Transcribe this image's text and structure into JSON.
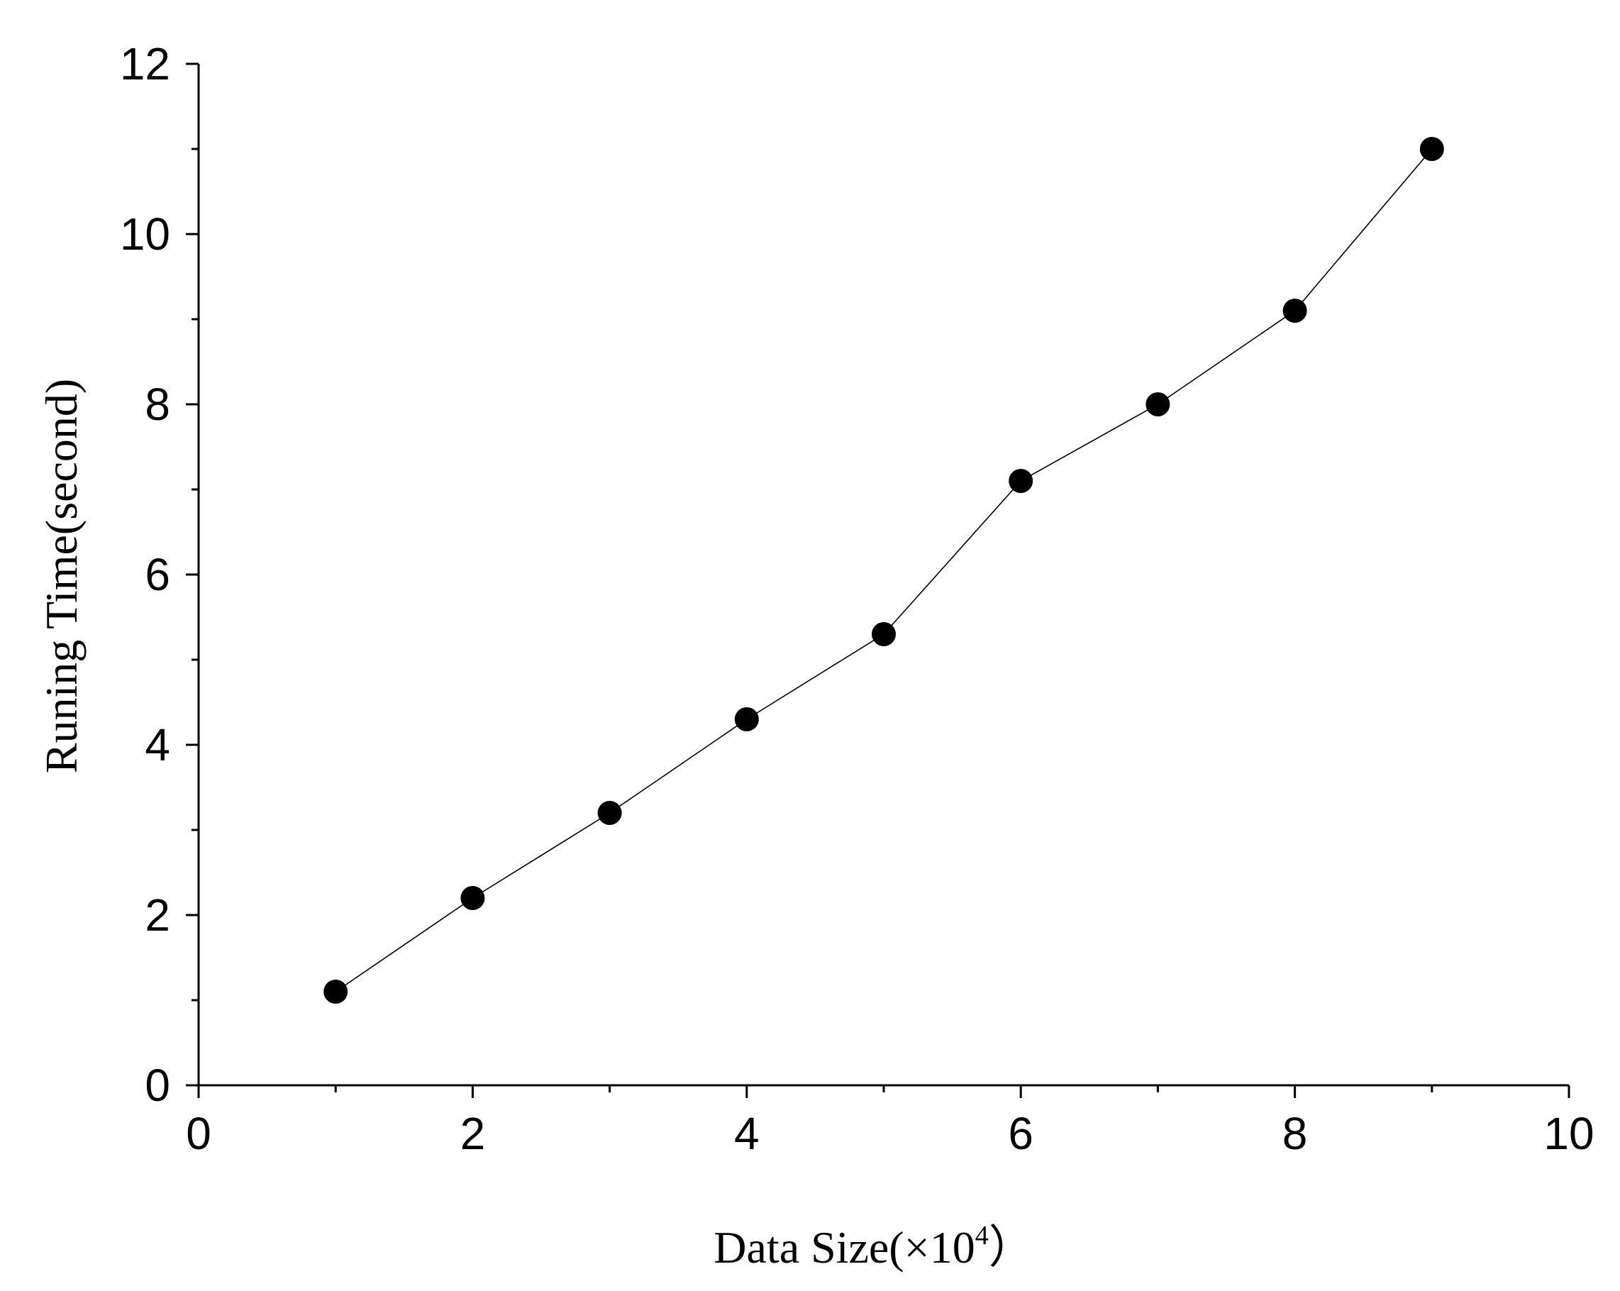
{
  "chart_data": {
    "type": "line",
    "xlabel": {
      "main": "Data Size(×10",
      "sup": "4",
      "end": "）"
    },
    "ylabel": "Runing Time(second)",
    "xlim": [
      0,
      10
    ],
    "ylim": [
      0,
      12
    ],
    "x_major_ticks": [
      0,
      2,
      4,
      6,
      8,
      10
    ],
    "y_major_ticks": [
      0,
      2,
      4,
      6,
      8,
      10,
      12
    ],
    "x_minor_ticks": [
      1,
      3,
      5,
      7,
      9
    ],
    "y_minor_ticks": [
      1,
      3,
      5,
      7,
      9,
      11
    ],
    "grid": false,
    "marker": "filled-circle",
    "line_color": "#000000",
    "marker_color": "#000000",
    "x": [
      1,
      2,
      3,
      4,
      5,
      6,
      7,
      8,
      9
    ],
    "series": [
      {
        "values": [
          1.1,
          2.2,
          3.2,
          4.3,
          5.3,
          7.1,
          8.0,
          9.1,
          11.0
        ]
      }
    ]
  }
}
